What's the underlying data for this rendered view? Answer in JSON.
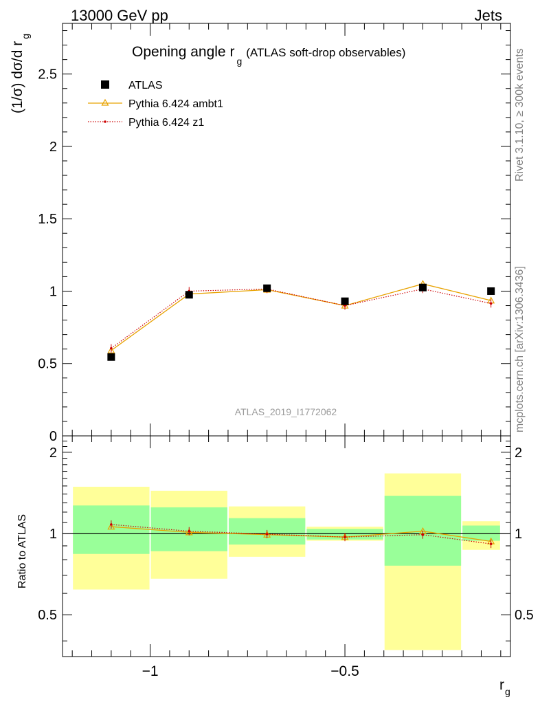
{
  "header": {
    "left": "13000 GeV pp",
    "right": "Jets"
  },
  "side_labels": {
    "rivet": "Rivet 3.1.10, ≥ 300k events",
    "mcplots": "mcplots.cern.ch [arXiv:1306.3436]"
  },
  "chart_data": [
    {
      "type": "scatter",
      "panel": "main",
      "title": "Opening angle r",
      "title_sub": "g",
      "title_suffix": "(ATLAS soft-drop observables)",
      "ylabel": "(1/σ) dσ/d r",
      "ylabel_sub": "g",
      "xlabel": "r",
      "xlabel_sub": "g",
      "analysis_tag": "ATLAS_2019_I1772062",
      "xlim": [
        -1.225,
        -0.075
      ],
      "ylim": [
        0,
        2.85
      ],
      "y_ticks": [
        {
          "v": 0.5,
          "label": "0.5"
        },
        {
          "v": 1,
          "label": "1"
        },
        {
          "v": 1.5,
          "label": "1.5"
        },
        {
          "v": 2,
          "label": "2"
        },
        {
          "v": 2.5,
          "label": "2.5"
        },
        {
          "v": 0,
          "label": "0"
        }
      ],
      "x": [
        -1.1,
        -0.9,
        -0.7,
        -0.5,
        -0.3,
        -0.125
      ],
      "series": [
        {
          "name": "ATLAS",
          "style": "data",
          "color": "#000000",
          "values": [
            0.545,
            0.975,
            1.02,
            0.93,
            1.025,
            1.0
          ]
        },
        {
          "name": "Pythia 6.424 ambt1",
          "style": "solid-triangle",
          "color": "#e8a200",
          "values": [
            0.59,
            0.98,
            1.01,
            0.9,
            1.05,
            0.935
          ]
        },
        {
          "name": "Pythia 6.424 z1",
          "style": "dotted-dot",
          "color": "#cc0000",
          "values": [
            0.605,
            1.0,
            1.015,
            0.9,
            1.015,
            0.915
          ]
        }
      ]
    },
    {
      "type": "scatter",
      "panel": "ratio",
      "ylabel": "Ratio to ATLAS",
      "xlim": [
        -1.225,
        -0.075
      ],
      "ylim": [
        0.35,
        2.3
      ],
      "y_ticks": [
        {
          "v": 0.5,
          "label": "0.5"
        },
        {
          "v": 1,
          "label": "1"
        },
        {
          "v": 2,
          "label": "2"
        }
      ],
      "x_ticks": [
        {
          "v": -1,
          "label": "−1"
        },
        {
          "v": -0.5,
          "label": "−0.5"
        }
      ],
      "bins": [
        {
          "lo": -1.2,
          "hi": -1.0,
          "green": [
            0.84,
            1.27
          ],
          "yellow": [
            0.62,
            1.49
          ]
        },
        {
          "lo": -1.0,
          "hi": -0.8,
          "green": [
            0.86,
            1.25
          ],
          "yellow": [
            0.68,
            1.44
          ]
        },
        {
          "lo": -0.8,
          "hi": -0.6,
          "green": [
            0.91,
            1.14
          ],
          "yellow": [
            0.82,
            1.26
          ]
        },
        {
          "lo": -0.6,
          "hi": -0.4,
          "green": [
            0.95,
            1.04
          ],
          "yellow": [
            0.94,
            1.06
          ]
        },
        {
          "lo": -0.4,
          "hi": -0.2,
          "green": [
            0.76,
            1.38
          ],
          "yellow": [
            0.37,
            1.67
          ]
        },
        {
          "lo": -0.2,
          "hi": -0.1,
          "green": [
            0.94,
            1.07
          ],
          "yellow": [
            0.87,
            1.11
          ]
        }
      ],
      "x": [
        -1.1,
        -0.9,
        -0.7,
        -0.5,
        -0.3,
        -0.125
      ],
      "series": [
        {
          "name": "Pythia 6.424 ambt1",
          "style": "solid-triangle",
          "color": "#e8a200",
          "values": [
            1.06,
            1.01,
            0.99,
            0.97,
            1.02,
            0.935
          ]
        },
        {
          "name": "Pythia 6.424 z1",
          "style": "dotted-dot",
          "color": "#cc0000",
          "values": [
            1.08,
            1.02,
            0.995,
            0.97,
            0.99,
            0.915
          ]
        }
      ]
    }
  ]
}
